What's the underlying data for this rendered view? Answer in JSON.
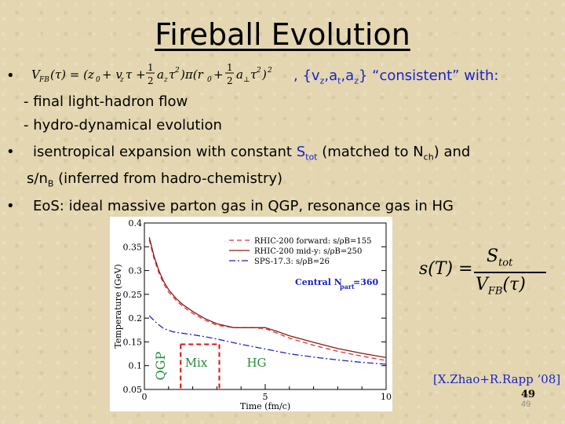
{
  "slide": {
    "title": "Fireball Evolution",
    "bullets": {
      "b1_symbol": "•",
      "b1_formula": "V_FB(τ) = (z0 + vz τ + ½ az τ²) π (r0 + ½ a⊥ τ²)²",
      "b1_text_a": ", {v",
      "b1_sub_z1": "z",
      "b1_text_b": ",a",
      "b1_sub_t": "t",
      "b1_text_c": ",a",
      "b1_sub_z2": "z",
      "b1_text_d": "} “consistent” with:",
      "sub1": "- final light-hadron flow",
      "sub2": "- hydro-dynamical evolution",
      "b2_symbol": "•",
      "b2_text_a": "isentropical expansion with constant",
      "b2_S": "S",
      "b2_sub_tot": "tot",
      "b2_text_b": "(matched to N",
      "b2_sub_ch": "ch",
      "b2_text_c": ") and",
      "b2_line2_a": "s/n",
      "b2_sub_B": "B",
      "b2_line2_b": "(inferred from hadro-chemistry)",
      "b3_symbol": "•",
      "b3_text": "EoS: ideal massive parton gas in QGP, resonance gas in HG"
    },
    "equation": {
      "lhs": "s(T) =",
      "numerator": "S",
      "numerator_sub": "tot",
      "denominator": "V",
      "denominator_sub": "FB",
      "denominator_arg": "(τ)"
    },
    "citation": "[X.Zhao+R.Rapp ‘08]",
    "page_number": "49",
    "page_number_small": "49"
  },
  "chart_data": {
    "type": "line",
    "xlabel": "Time (fm/c)",
    "ylabel": "Temperature (GeV)",
    "xlim": [
      0,
      10
    ],
    "ylim": [
      0.05,
      0.4
    ],
    "x_ticks": [
      "0",
      "5",
      "10"
    ],
    "y_ticks": [
      "0.05",
      "0.1",
      "0.15",
      "0.2",
      "0.25",
      "0.3",
      "0.35",
      "0.4"
    ],
    "region_labels": {
      "qgp": "QGP",
      "mix": "Mix",
      "hg": "HG"
    },
    "legend_note": "Central N",
    "legend_note_sub": "part",
    "legend_note_val": "=360",
    "series": [
      {
        "name": "RHIC-200 forward:  s/ρB=155",
        "color": "#dd3333",
        "dash": "6,4",
        "x": [
          0.2,
          0.4,
          0.6,
          0.8,
          1.0,
          1.3,
          1.6,
          2.0,
          2.5,
          3.0,
          3.7,
          4.5,
          5.0,
          5.5,
          6.0,
          7.0,
          8.0,
          9.0,
          10.0
        ],
        "y": [
          0.365,
          0.325,
          0.295,
          0.272,
          0.255,
          0.238,
          0.224,
          0.21,
          0.196,
          0.185,
          0.18,
          0.18,
          0.178,
          0.168,
          0.158,
          0.143,
          0.13,
          0.12,
          0.111
        ]
      },
      {
        "name": "RHIC-200 mid-y:  s/ρB=250",
        "color": "#8a1a1a",
        "dash": "",
        "x": [
          0.2,
          0.4,
          0.6,
          0.8,
          1.0,
          1.3,
          1.6,
          2.0,
          2.5,
          3.0,
          3.7,
          4.5,
          5.0,
          5.5,
          6.0,
          7.0,
          8.0,
          9.0,
          10.0
        ],
        "y": [
          0.37,
          0.33,
          0.3,
          0.277,
          0.26,
          0.242,
          0.228,
          0.214,
          0.199,
          0.188,
          0.18,
          0.18,
          0.18,
          0.172,
          0.163,
          0.149,
          0.136,
          0.126,
          0.117
        ]
      },
      {
        "name": "SPS-17.3:  s/ρB=26",
        "color": "#2222bb",
        "dash": "8,3,2,3",
        "x": [
          0.2,
          0.5,
          0.8,
          1.2,
          1.6,
          2.0,
          2.5,
          3.0,
          4.0,
          5.0,
          6.0,
          7.0,
          8.0,
          9.0,
          10.0
        ],
        "y": [
          0.205,
          0.19,
          0.178,
          0.171,
          0.168,
          0.165,
          0.161,
          0.156,
          0.145,
          0.135,
          0.125,
          0.118,
          0.112,
          0.107,
          0.103
        ]
      }
    ],
    "phase_boundaries": [
      1.5,
      3.1
    ],
    "boundary_color": "#dd1111"
  }
}
